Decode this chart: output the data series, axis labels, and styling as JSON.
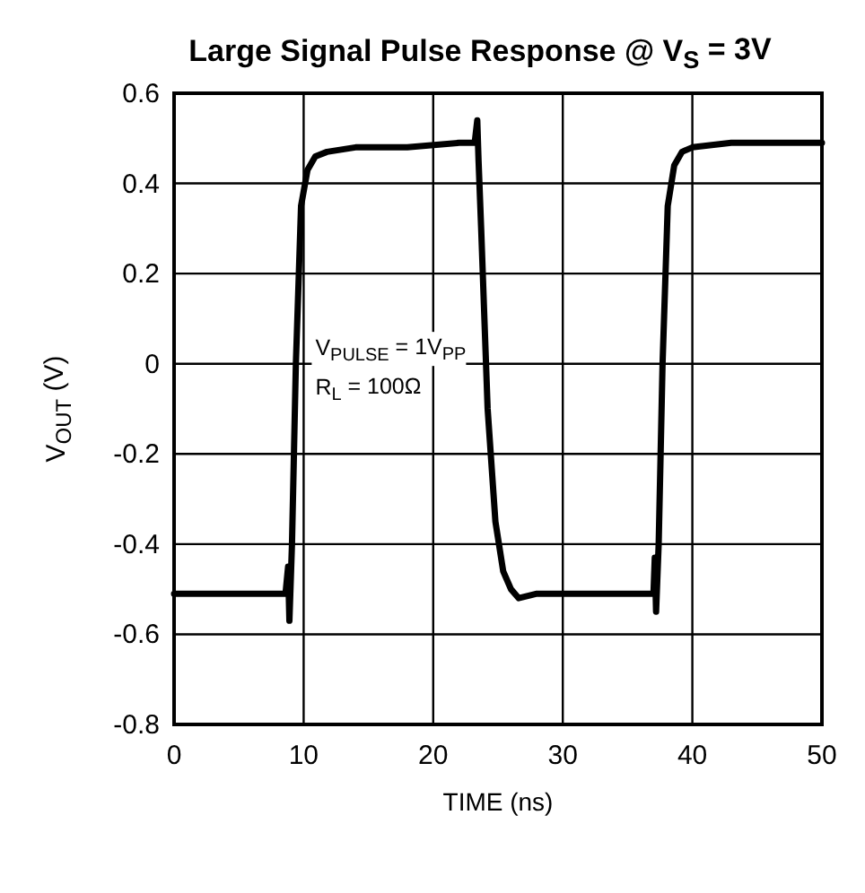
{
  "chart_data": {
    "type": "line",
    "title": "Large Signal Pulse Response @ V$_{S}$ = 3V",
    "xlabel": "TIME (ns)",
    "ylabel": "V$_{OUT}$ (V)",
    "annotations": [
      "V$_{PULSE}$ = 1V$_{PP}$",
      "R$_{L}$ = 100Ω"
    ],
    "series": [
      {
        "color": "#000000",
        "x": [
          0,
          4,
          8.6,
          8.8,
          8.9,
          9.1,
          9.4,
          9.8,
          10.3,
          10.9,
          11.8,
          14,
          18,
          22,
          23.2,
          23.4,
          23.5,
          23.7,
          24.2,
          24.8,
          25.4,
          26,
          26.6,
          28,
          32,
          36,
          37,
          37.1,
          37.2,
          37.4,
          37.7,
          38.1,
          38.6,
          39.2,
          40,
          43,
          47,
          50
        ],
        "values": [
          -0.51,
          -0.51,
          -0.51,
          -0.45,
          -0.57,
          -0.4,
          0,
          0.35,
          0.43,
          0.46,
          0.47,
          0.48,
          0.48,
          0.49,
          0.49,
          0.54,
          0.45,
          0.3,
          -0.1,
          -0.35,
          -0.46,
          -0.5,
          -0.52,
          -0.51,
          -0.51,
          -0.51,
          -0.51,
          -0.43,
          -0.55,
          -0.4,
          0,
          0.35,
          0.44,
          0.47,
          0.48,
          0.49,
          0.49,
          0.49
        ]
      }
    ],
    "xlim": [
      0,
      50
    ],
    "xticks": [
      0,
      10,
      20,
      30,
      40,
      50
    ],
    "ylim": [
      -0.8,
      0.6
    ],
    "yticks": [
      0.6,
      0.4,
      0.2,
      0,
      -0.2,
      -0.4,
      -0.6,
      -0.8
    ],
    "grid": true,
    "marker": "none",
    "line_style": "solid"
  }
}
